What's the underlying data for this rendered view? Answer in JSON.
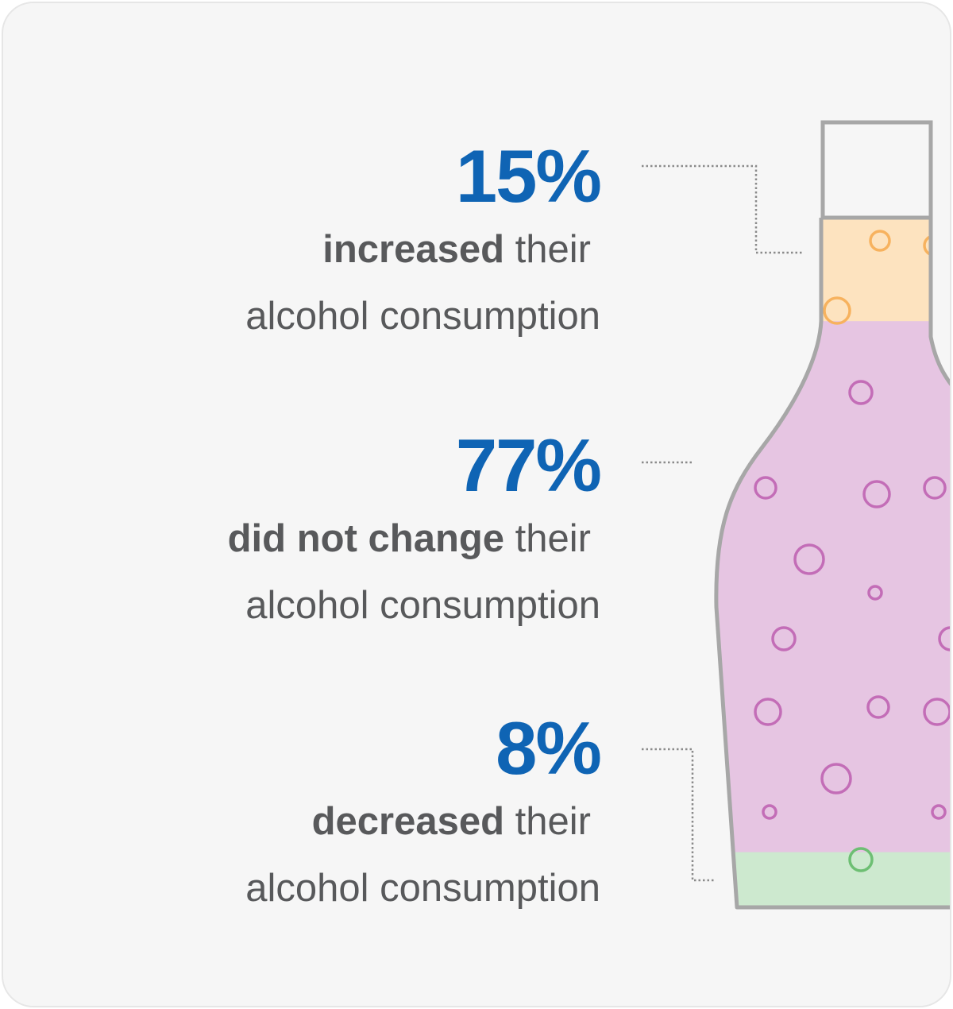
{
  "chart_data": {
    "type": "bar",
    "orientation": "stacked-vertical-bottle",
    "categories": [
      "increased",
      "did not change",
      "decreased"
    ],
    "values": [
      15,
      77,
      8
    ],
    "unit": "%",
    "labels": [
      {
        "value": "15%",
        "bold": "increased",
        "rest": " their",
        "line2": "alcohol consumption"
      },
      {
        "value": "77%",
        "bold": "did not change",
        "rest": " their",
        "line2": "alcohol consumption"
      },
      {
        "value": "8%",
        "bold": "decreased",
        "rest": " their",
        "line2": "alcohol consumption"
      }
    ],
    "colors": {
      "increased_fill": "#fde3bf",
      "increased_bubble": "#f7b25e",
      "unchanged_fill": "#e6c5e2",
      "unchanged_bubble": "#c36db7",
      "decreased_fill": "#cde9cf",
      "decreased_bubble": "#6dbf73",
      "value_text": "#0f64b4",
      "body_text": "#58595b",
      "bottle_outline": "#a7a7a7",
      "leader_line": "#8a8a8a"
    }
  }
}
